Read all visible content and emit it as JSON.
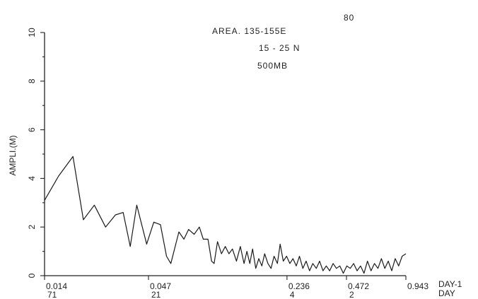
{
  "page_number": "80",
  "chart_data": {
    "type": "line",
    "title": "",
    "ylabel": "AMPLI.(M)",
    "xlabel": "DAY-1",
    "xlabel_line2": "DAY",
    "ylim": [
      0,
      10
    ],
    "yticks": [
      0,
      2,
      4,
      6,
      8,
      10
    ],
    "xlim": [
      0.014,
      0.943
    ],
    "x_scale": "log",
    "xticks": [
      {
        "value": 0.014,
        "label": "0.014",
        "sublabel": "71"
      },
      {
        "value": 0.047,
        "label": "0.047",
        "sublabel": "21"
      },
      {
        "value": 0.236,
        "label": "0.236",
        "sublabel": "4"
      },
      {
        "value": 0.472,
        "label": "0.472",
        "sublabel": "2"
      },
      {
        "value": 0.943,
        "label": "0.943",
        "sublabel": ""
      }
    ],
    "annotations": [
      "AREA. 135-155E",
      "15 - 25 N",
      "500MB"
    ],
    "grid": false,
    "series": [
      {
        "values": [
          [
            0.014,
            3.1
          ],
          [
            0.0165,
            4.1
          ],
          [
            0.0195,
            4.9
          ],
          [
            0.022,
            2.3
          ],
          [
            0.025,
            2.9
          ],
          [
            0.0285,
            2.0
          ],
          [
            0.032,
            2.5
          ],
          [
            0.035,
            2.6
          ],
          [
            0.038,
            1.2
          ],
          [
            0.041,
            2.9
          ],
          [
            0.046,
            1.3
          ],
          [
            0.05,
            2.2
          ],
          [
            0.054,
            2.1
          ],
          [
            0.058,
            0.8
          ],
          [
            0.061,
            0.5
          ],
          [
            0.067,
            1.8
          ],
          [
            0.071,
            1.5
          ],
          [
            0.075,
            1.9
          ],
          [
            0.08,
            1.7
          ],
          [
            0.085,
            2.0
          ],
          [
            0.089,
            1.5
          ],
          [
            0.094,
            1.5
          ],
          [
            0.098,
            0.6
          ],
          [
            0.101,
            0.5
          ],
          [
            0.105,
            1.4
          ],
          [
            0.11,
            0.9
          ],
          [
            0.115,
            1.2
          ],
          [
            0.12,
            0.9
          ],
          [
            0.125,
            1.1
          ],
          [
            0.131,
            0.6
          ],
          [
            0.137,
            1.2
          ],
          [
            0.143,
            0.5
          ],
          [
            0.148,
            1.0
          ],
          [
            0.153,
            0.5
          ],
          [
            0.158,
            1.1
          ],
          [
            0.164,
            0.3
          ],
          [
            0.17,
            0.7
          ],
          [
            0.176,
            0.4
          ],
          [
            0.182,
            0.9
          ],
          [
            0.189,
            0.5
          ],
          [
            0.196,
            0.3
          ],
          [
            0.203,
            0.8
          ],
          [
            0.211,
            0.5
          ],
          [
            0.218,
            1.3
          ],
          [
            0.226,
            0.6
          ],
          [
            0.235,
            0.8
          ],
          [
            0.244,
            0.5
          ],
          [
            0.253,
            0.7
          ],
          [
            0.263,
            0.4
          ],
          [
            0.273,
            0.8
          ],
          [
            0.284,
            0.3
          ],
          [
            0.295,
            0.6
          ],
          [
            0.307,
            0.2
          ],
          [
            0.319,
            0.5
          ],
          [
            0.332,
            0.3
          ],
          [
            0.345,
            0.6
          ],
          [
            0.359,
            0.2
          ],
          [
            0.373,
            0.4
          ],
          [
            0.388,
            0.2
          ],
          [
            0.404,
            0.5
          ],
          [
            0.42,
            0.3
          ],
          [
            0.437,
            0.4
          ],
          [
            0.455,
            0.1
          ],
          [
            0.474,
            0.4
          ],
          [
            0.493,
            0.3
          ],
          [
            0.513,
            0.5
          ],
          [
            0.534,
            0.2
          ],
          [
            0.556,
            0.4
          ],
          [
            0.579,
            0.1
          ],
          [
            0.603,
            0.6
          ],
          [
            0.628,
            0.2
          ],
          [
            0.654,
            0.5
          ],
          [
            0.681,
            0.3
          ],
          [
            0.709,
            0.7
          ],
          [
            0.738,
            0.3
          ],
          [
            0.768,
            0.6
          ],
          [
            0.8,
            0.2
          ],
          [
            0.833,
            0.7
          ],
          [
            0.867,
            0.4
          ],
          [
            0.903,
            0.8
          ],
          [
            0.943,
            0.9
          ]
        ]
      }
    ]
  }
}
